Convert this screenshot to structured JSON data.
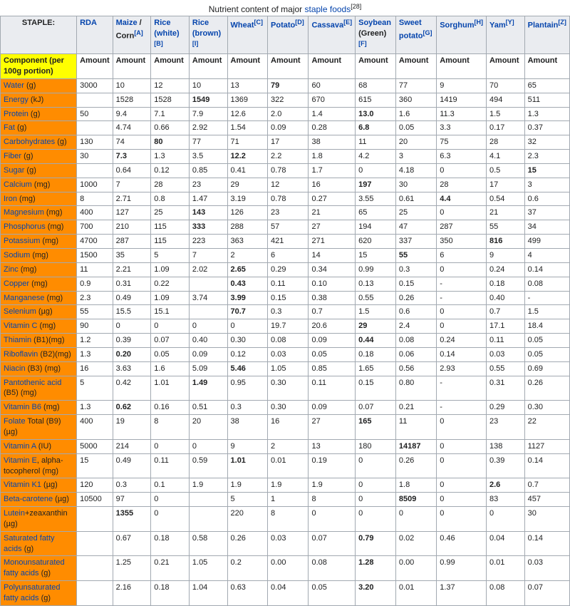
{
  "caption_prefix": "Nutrient content of major ",
  "caption_link": "staple foods",
  "caption_ref": "[28]",
  "header": {
    "staple": "STAPLE:",
    "rda": "RDA",
    "cols": [
      {
        "label": "Maize",
        "extra": " / Corn",
        "sup": "[A]"
      },
      {
        "label": "Rice (white)",
        "extra": "",
        "sup": "[B]"
      },
      {
        "label": "Rice (brown)",
        "extra": "",
        "sup": "[I]"
      },
      {
        "label": "Wheat",
        "extra": "",
        "sup": "[C]"
      },
      {
        "label": "Potato",
        "extra": "",
        "sup": "[D]"
      },
      {
        "label": "Cassava",
        "extra": "",
        "sup": "[E]"
      },
      {
        "label": "Soybean",
        "extra": " (Green)",
        "sup": "[F]"
      },
      {
        "label": "Sweet potato",
        "extra": "",
        "sup": "[G]"
      },
      {
        "label": "Sorghum",
        "extra": "",
        "sup": "[H]"
      },
      {
        "label": "Yam",
        "extra": "",
        "sup": "[Y]"
      },
      {
        "label": "Plantain",
        "extra": "",
        "sup": "[Z]"
      }
    ]
  },
  "component_row": {
    "label": "Component (per 100g portion)",
    "cells": [
      "Amount",
      "Amount",
      "Amount",
      "Amount",
      "Amount",
      "Amount",
      "Amount",
      "Amount",
      "Amount",
      "Amount",
      "Amount",
      "Amount"
    ]
  },
  "rows": [
    {
      "label": "Water",
      "unit": " (g)",
      "rda": "3000",
      "v": [
        "10",
        "12",
        "10",
        "13",
        "79::b",
        "60",
        "68",
        "77",
        "9",
        "70",
        "65"
      ]
    },
    {
      "label": "Energy",
      "unit": " (kJ)",
      "rda": "",
      "v": [
        "1528",
        "1528",
        "1549::b",
        "1369",
        "322",
        "670",
        "615",
        "360",
        "1419",
        "494",
        "511"
      ]
    },
    {
      "label": "Protein",
      "unit": " (g)",
      "rda": "50",
      "v": [
        "9.4",
        "7.1",
        "7.9",
        "12.6",
        "2.0",
        "1.4",
        "13.0::b",
        "1.6",
        "11.3",
        "1.5",
        "1.3"
      ]
    },
    {
      "label": "Fat",
      "unit": " (g)",
      "rda": "",
      "v": [
        "4.74",
        "0.66",
        "2.92",
        "1.54",
        "0.09",
        "0.28",
        "6.8::b",
        "0.05",
        "3.3",
        "0.17",
        "0.37"
      ]
    },
    {
      "label": "Carbohydrates",
      "unit": " (g)",
      "rda": "130",
      "v": [
        "74",
        "80::b",
        "77",
        "71",
        "17",
        "38",
        "11",
        "20",
        "75",
        "28",
        "32"
      ]
    },
    {
      "label": "Fiber",
      "unit": " (g)",
      "rda": "30",
      "v": [
        "7.3::b",
        "1.3",
        "3.5",
        "12.2::b",
        "2.2",
        "1.8",
        "4.2",
        "3",
        "6.3",
        "4.1",
        "2.3"
      ]
    },
    {
      "label": "Sugar",
      "unit": " (g)",
      "rda": "",
      "v": [
        "0.64",
        "0.12",
        "0.85",
        "0.41",
        "0.78",
        "1.7",
        "0",
        "4.18",
        "0",
        "0.5",
        "15::b"
      ]
    },
    {
      "label": "Calcium",
      "unit": " (mg)",
      "rda": "1000",
      "v": [
        "7",
        "28",
        "23",
        "29",
        "12",
        "16",
        "197::b",
        "30",
        "28",
        "17",
        "3"
      ]
    },
    {
      "label": "Iron",
      "unit": " (mg)",
      "rda": "8",
      "v": [
        "2.71",
        "0.8",
        "1.47",
        "3.19",
        "0.78",
        "0.27",
        "3.55",
        "0.61",
        "4.4::b",
        "0.54",
        "0.6"
      ]
    },
    {
      "label": "Magnesium",
      "unit": " (mg)",
      "rda": "400",
      "v": [
        "127",
        "25",
        "143::b",
        "126",
        "23",
        "21",
        "65",
        "25",
        "0",
        "21",
        "37"
      ]
    },
    {
      "label": "Phosphorus",
      "unit": " (mg)",
      "rda": "700",
      "v": [
        "210",
        "115",
        "333::b",
        "288",
        "57",
        "27",
        "194",
        "47",
        "287",
        "55",
        "34"
      ]
    },
    {
      "label": "Potassium",
      "unit": " (mg)",
      "rda": "4700",
      "v": [
        "287",
        "115",
        "223",
        "363",
        "421",
        "271",
        "620",
        "337",
        "350",
        "816::b",
        "499"
      ]
    },
    {
      "label": "Sodium",
      "unit": " (mg)",
      "rda": "1500",
      "v": [
        "35",
        "5",
        "7",
        "2",
        "6",
        "14",
        "15",
        "55::b",
        "6",
        "9",
        "4"
      ]
    },
    {
      "label": "Zinc",
      "unit": " (mg)",
      "rda": "11",
      "v": [
        "2.21",
        "1.09",
        "2.02",
        "2.65::b",
        "0.29",
        "0.34",
        "0.99",
        "0.3",
        "0",
        "0.24",
        "0.14"
      ]
    },
    {
      "label": "Copper",
      "unit": " (mg)",
      "rda": "0.9",
      "v": [
        "0.31",
        "0.22",
        "",
        "0.43::b",
        "0.11",
        "0.10",
        "0.13",
        "0.15",
        "-",
        "0.18",
        "0.08"
      ]
    },
    {
      "label": "Manganese",
      "unit": " (mg)",
      "rda": "2.3",
      "v": [
        "0.49",
        "1.09",
        "3.74",
        "3.99::b",
        "0.15",
        "0.38",
        "0.55",
        "0.26",
        "-",
        "0.40",
        "-"
      ]
    },
    {
      "label": "Selenium",
      "unit": " (µg)",
      "rda": "55",
      "v": [
        "15.5",
        "15.1",
        "",
        "70.7::b",
        "0.3",
        "0.7",
        "1.5",
        "0.6",
        "0",
        "0.7",
        "1.5"
      ]
    },
    {
      "label": "Vitamin C",
      "unit": " (mg)",
      "rda": "90",
      "v": [
        "0",
        "0",
        "0",
        "0",
        "19.7",
        "20.6",
        "29::b",
        "2.4",
        "0",
        "17.1",
        "18.4"
      ]
    },
    {
      "label": "Thiamin",
      "plain": " (B1)(mg)",
      "rda": "1.2",
      "v": [
        "0.39",
        "0.07",
        "0.40",
        "0.30",
        "0.08",
        "0.09",
        "0.44::b",
        "0.08",
        "0.24",
        "0.11",
        "0.05"
      ]
    },
    {
      "label": "Riboflavin",
      "plain": " (B2)(mg)",
      "rda": "1.3",
      "v": [
        "0.20::b",
        "0.05",
        "0.09",
        "0.12",
        "0.03",
        "0.05",
        "0.18",
        "0.06",
        "0.14",
        "0.03",
        "0.05"
      ]
    },
    {
      "label": "Niacin",
      "plain": " (B3) (mg)",
      "rda": "16",
      "v": [
        "3.63",
        "1.6",
        "5.09",
        "5.46::b",
        "1.05",
        "0.85",
        "1.65",
        "0.56",
        "2.93",
        "0.55",
        "0.69"
      ]
    },
    {
      "label": "Pantothenic acid",
      "plain": " (B5) (mg)",
      "rda": "5",
      "v": [
        "0.42",
        "1.01",
        "1.49::b",
        "0.95",
        "0.30",
        "0.11",
        "0.15",
        "0.80",
        "-",
        "0.31",
        "0.26"
      ]
    },
    {
      "label": "Vitamin B6",
      "unit": " (mg)",
      "rda": "1.3",
      "v": [
        "0.62::b",
        "0.16",
        "0.51",
        "0.3",
        "0.30",
        "0.09",
        "0.07",
        "0.21",
        "-",
        "0.29",
        "0.30"
      ]
    },
    {
      "label": "Folate",
      "plain": " Total (B9) (µg)",
      "rda": "400",
      "v": [
        "19",
        "8",
        "20",
        "38",
        "16",
        "27",
        "165::b",
        "11",
        "0",
        "23",
        "22"
      ]
    },
    {
      "label": "Vitamin A",
      "unit": " (IU)",
      "rda": "5000",
      "v": [
        "214",
        "0",
        "0",
        "9",
        "2",
        "13",
        "180",
        "14187::b",
        "0",
        "138",
        "1127"
      ]
    },
    {
      "label": "Vitamin E",
      "plain": ", alpha-tocopherol (mg)",
      "rda": "15",
      "v": [
        "0.49",
        "0.11",
        "0.59",
        "1.01::b",
        "0.01",
        "0.19",
        "0",
        "0.26",
        "0",
        "0.39",
        "0.14"
      ]
    },
    {
      "label": "Vitamin K1",
      "unit": " (µg)",
      "rda": "120",
      "v": [
        "0.3",
        "0.1",
        "1.9",
        "1.9",
        "1.9",
        "1.9",
        "0",
        "1.8",
        "0",
        "2.6::b",
        "0.7"
      ]
    },
    {
      "label": "Beta-carotene",
      "unit": " (µg)",
      "rda": "10500",
      "v": [
        "97",
        "0",
        "",
        "5",
        "1",
        "8",
        "0",
        "8509::b",
        "0",
        "83",
        "457"
      ]
    },
    {
      "label": "Lutein",
      "plain": "+zeaxanthin (µg)",
      "rda": "",
      "v": [
        "1355::b",
        "0",
        "",
        "220",
        "8",
        "0",
        "0",
        "0",
        "0",
        "0",
        "30"
      ]
    },
    {
      "label": "Saturated fatty acids",
      "unit": " (g)",
      "rda": "",
      "v": [
        "0.67",
        "0.18",
        "0.58",
        "0.26",
        "0.03",
        "0.07",
        "0.79::b",
        "0.02",
        "0.46",
        "0.04",
        "0.14"
      ]
    },
    {
      "label": "Monounsaturated fatty acids",
      "unit": " (g)",
      "rda": "",
      "v": [
        "1.25",
        "0.21",
        "1.05",
        "0.2",
        "0.00",
        "0.08",
        "1.28::b",
        "0.00",
        "0.99",
        "0.01",
        "0.03"
      ]
    },
    {
      "label": "Polyunsaturated fatty acids",
      "unit": " (g)",
      "rda": "",
      "v": [
        "2.16",
        "0.18",
        "1.04",
        "0.63",
        "0.04",
        "0.05",
        "3.20::b",
        "0.01",
        "1.37",
        "0.08",
        "0.07"
      ]
    }
  ]
}
